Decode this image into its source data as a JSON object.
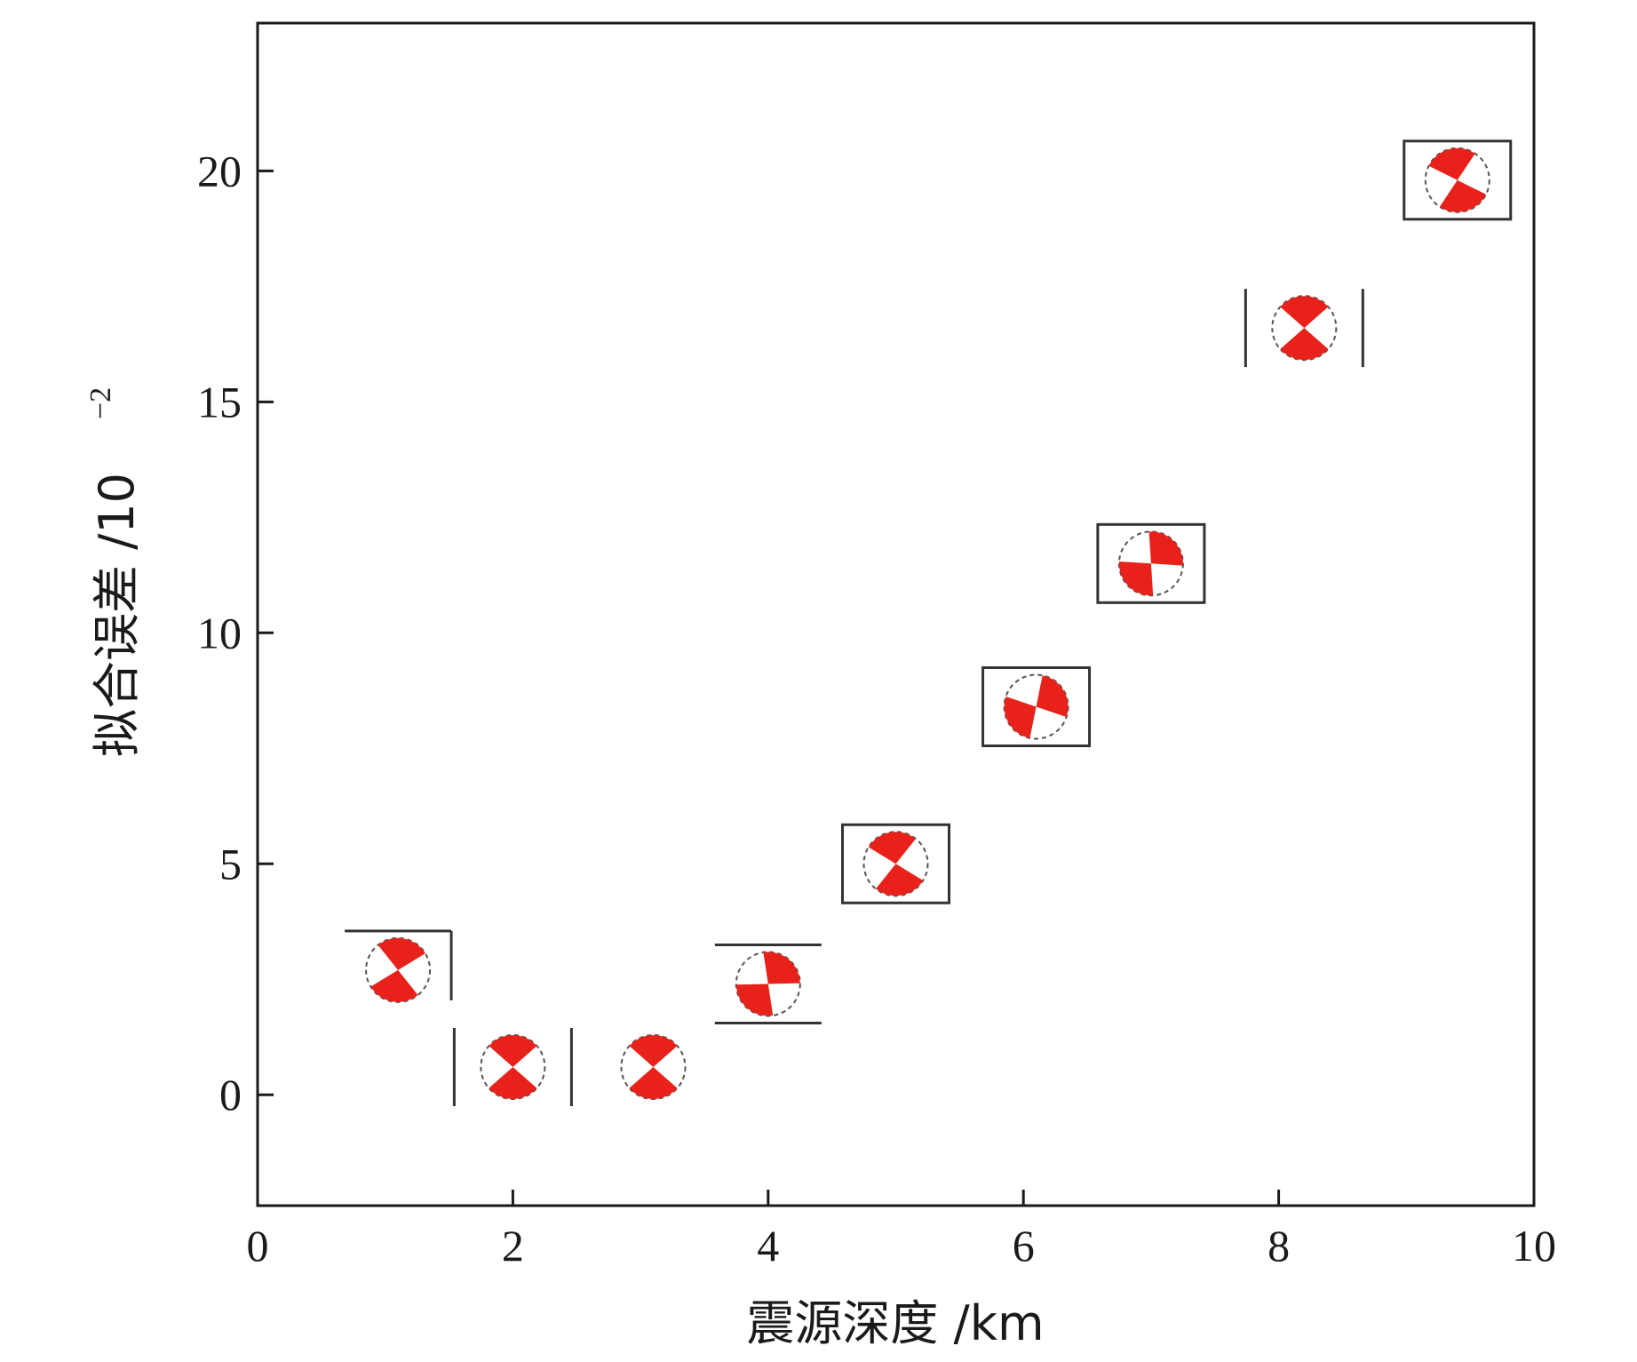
{
  "chart_data": {
    "type": "scatter",
    "xlabel": "震源深度 /km",
    "ylabel": "拟合误差 /10",
    "ylabel_exponent": "−2",
    "xlim": [
      0,
      10
    ],
    "ylim": [
      -2.4,
      23.2
    ],
    "x_ticks": [
      "0",
      "2",
      "4",
      "6",
      "8",
      "10"
    ],
    "x_tick_values": [
      0,
      2,
      4,
      6,
      8,
      10
    ],
    "y_ticks": [
      "0",
      "5",
      "10",
      "15",
      "20"
    ],
    "y_tick_values": [
      0,
      5,
      10,
      15,
      20
    ],
    "marker": "focal-mechanism beachball",
    "marker_colors": {
      "fill": "#e8221b",
      "outline": "#555555",
      "box": "#333333"
    },
    "points": [
      {
        "x": 1.1,
        "y": 2.7,
        "rot": 10,
        "box": "top"
      },
      {
        "x": 2.0,
        "y": 0.6,
        "rot": 0,
        "box": "sides"
      },
      {
        "x": 3.1,
        "y": 0.6,
        "rot": 0,
        "box": "none"
      },
      {
        "x": 4.0,
        "y": 2.4,
        "rot": 40,
        "box": "topbottom"
      },
      {
        "x": 5.0,
        "y": 5.0,
        "rot": -10,
        "box": "full"
      },
      {
        "x": 6.1,
        "y": 8.4,
        "rot": 60,
        "box": "full"
      },
      {
        "x": 7.0,
        "y": 11.5,
        "rot": 45,
        "box": "full"
      },
      {
        "x": 8.2,
        "y": 16.6,
        "rot": 0,
        "box": "sides"
      },
      {
        "x": 9.4,
        "y": 19.8,
        "rot": -15,
        "box": "full"
      }
    ]
  }
}
